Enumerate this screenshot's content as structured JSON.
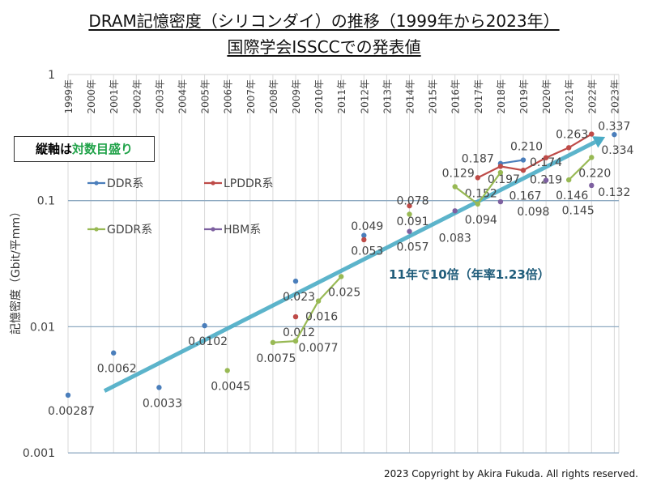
{
  "title_line1": "DRAM記憶密度（シリコンダイ）の推移（1999年から2023年）",
  "title_line2": "国際学会ISSCCでの発表値",
  "copyright": "2023 Copyright by Akira Fukuda. All rights reserved.",
  "note": {
    "prefix": "縦軸は",
    "highlight": "対数目盛り",
    "highlight_color": "#22a34a"
  },
  "trend_annotation": "11年で10倍（年率1.23倍）",
  "chart_data": {
    "type": "line",
    "title": "",
    "xlabel": "",
    "ylabel": "記憶密度（Gbit/平mm）",
    "yscale": "log",
    "ylim": [
      0.001,
      1
    ],
    "ytick_labels": [
      "1",
      "0.1",
      "0.01",
      "0.001"
    ],
    "yticks": [
      1,
      0.1,
      0.01,
      0.001
    ],
    "x_categories": [
      "1999年",
      "2000年",
      "2001年",
      "2002年",
      "2003年",
      "2004年",
      "2005年",
      "2006年",
      "2007年",
      "2008年",
      "2009年",
      "2010年",
      "2011年",
      "2012年",
      "2013年",
      "2014年",
      "2015年",
      "2016年",
      "2017年",
      "2018年",
      "2019年",
      "2020年",
      "2021年",
      "2022年",
      "2023年"
    ],
    "grid": true,
    "legend_placement": "top-left",
    "trend_arrow": {
      "from": {
        "year": 2000.6,
        "value": 0.0031
      },
      "to": {
        "year": 2022.6,
        "value": 0.32
      },
      "color": "#4bacc6"
    },
    "series": [
      {
        "name": "DDR系",
        "color": "#4a7ebb",
        "points": [
          {
            "year": 1999,
            "value": 0.00287,
            "label": "0.00287",
            "connected": false
          },
          {
            "year": 2001,
            "value": 0.0062,
            "label": "0.0062",
            "connected": false
          },
          {
            "year": 2003,
            "value": 0.0033,
            "label": "0.0033",
            "connected": false
          },
          {
            "year": 2005,
            "value": 0.0102,
            "label": "0.0102",
            "connected": false
          },
          {
            "year": 2009,
            "value": 0.023,
            "label": "0.023",
            "connected": false
          },
          {
            "year": 2012,
            "value": 0.053,
            "label": "0.053",
            "connected": false
          },
          {
            "year": 2018,
            "value": 0.197,
            "label": "0.197",
            "connected": true
          },
          {
            "year": 2019,
            "value": 0.21,
            "label": "0.210",
            "connected": true
          },
          {
            "year": 2023,
            "value": 0.334,
            "label": "0.334",
            "connected": false
          }
        ]
      },
      {
        "name": "LPDDR系",
        "color": "#be4b48",
        "points": [
          {
            "year": 2009,
            "value": 0.012,
            "label": "0.012",
            "connected": false
          },
          {
            "year": 2012,
            "value": 0.049,
            "label": "0.049",
            "connected": false
          },
          {
            "year": 2014,
            "value": 0.091,
            "label": "0.091",
            "connected": false
          },
          {
            "year": 2017,
            "value": 0.152,
            "label": "0.152",
            "connected": true
          },
          {
            "year": 2018,
            "value": 0.187,
            "label": "0.187",
            "connected": true
          },
          {
            "year": 2019,
            "value": 0.174,
            "label": "0.174",
            "connected": true
          },
          {
            "year": 2020,
            "value": 0.219,
            "label": "0.219",
            "connected": true
          },
          {
            "year": 2021,
            "value": 0.263,
            "label": "0.263",
            "connected": true
          },
          {
            "year": 2022,
            "value": 0.337,
            "label": "0.337",
            "connected": true
          }
        ]
      },
      {
        "name": "GDDR系",
        "color": "#98b954",
        "points": [
          {
            "year": 2006,
            "value": 0.0045,
            "label": "0.0045",
            "connected": false
          },
          {
            "year": 2008,
            "value": 0.0075,
            "label": "0.0075",
            "connected": true
          },
          {
            "year": 2009,
            "value": 0.0077,
            "label": "0.0077",
            "connected": true
          },
          {
            "year": 2010,
            "value": 0.016,
            "label": "0.016",
            "connected": true
          },
          {
            "year": 2011,
            "value": 0.025,
            "label": "0.025",
            "connected": true
          },
          {
            "year": 2014,
            "value": 0.078,
            "label": "0.078",
            "connected": false
          },
          {
            "year": 2016,
            "value": 0.129,
            "label": "0.129",
            "connected": true
          },
          {
            "year": 2017,
            "value": 0.094,
            "label": "0.094",
            "connected": true
          },
          {
            "year": 2018,
            "value": 0.167,
            "label": "0.167",
            "connected": true
          },
          {
            "year": 2021,
            "value": 0.146,
            "label": "0.146",
            "connected": true
          },
          {
            "year": 2022,
            "value": 0.22,
            "label": "0.220",
            "connected": true
          }
        ]
      },
      {
        "name": "HBM系",
        "color": "#7d60a0",
        "points": [
          {
            "year": 2014,
            "value": 0.057,
            "label": "0.057",
            "connected": false
          },
          {
            "year": 2016,
            "value": 0.083,
            "label": "0.083",
            "connected": false
          },
          {
            "year": 2018,
            "value": 0.098,
            "label": "0.098",
            "connected": false
          },
          {
            "year": 2020,
            "value": 0.145,
            "label": "0.145",
            "connected": false
          },
          {
            "year": 2022,
            "value": 0.132,
            "label": "0.132",
            "connected": false
          }
        ]
      }
    ]
  }
}
